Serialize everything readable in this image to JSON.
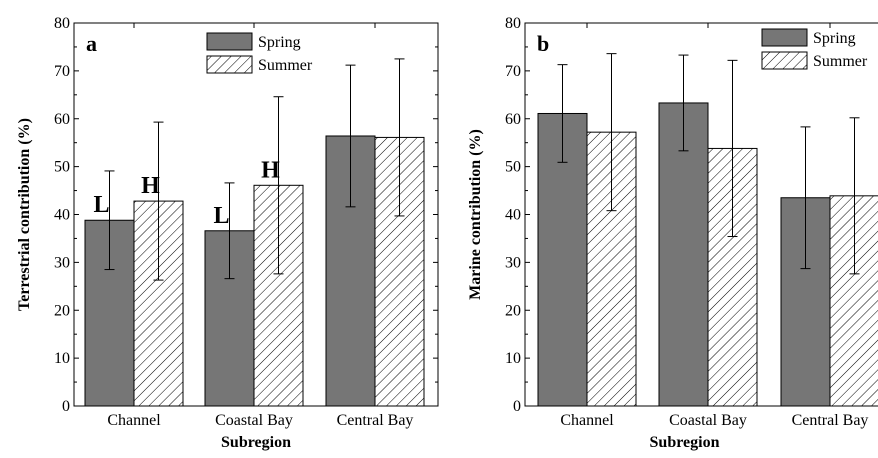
{
  "chart_data": [
    {
      "type": "bar",
      "panel_label": "a",
      "categories": [
        "Channel",
        "Coastal Bay",
        "Central Bay"
      ],
      "xlabel": "Subregion",
      "ylabel": "Terrestrial contribution (%)",
      "ylim": [
        0,
        80
      ],
      "yticks": [
        0,
        10,
        20,
        30,
        40,
        50,
        60,
        70,
        80
      ],
      "legend_position": "top-right",
      "series": [
        {
          "name": "Spring",
          "values": [
            38.8,
            36.6,
            56.4
          ],
          "errors": [
            10.3,
            10.0,
            14.8
          ],
          "labels": [
            "L",
            "L",
            ""
          ],
          "fill": "solid",
          "color": "#767676"
        },
        {
          "name": "Summer",
          "values": [
            42.8,
            46.1,
            56.1
          ],
          "errors": [
            16.5,
            18.5,
            16.4
          ],
          "labels": [
            "H",
            "H",
            ""
          ],
          "fill": "hatch",
          "color": "#ffffff"
        }
      ]
    },
    {
      "type": "bar",
      "panel_label": "b",
      "categories": [
        "Channel",
        "Coastal Bay",
        "Central Bay"
      ],
      "xlabel": "Subregion",
      "ylabel": "Marine contribution (%)",
      "ylim": [
        0,
        80
      ],
      "yticks": [
        0,
        10,
        20,
        30,
        40,
        50,
        60,
        70,
        80
      ],
      "legend_position": "top-right",
      "series": [
        {
          "name": "Spring",
          "values": [
            61.1,
            63.3,
            43.5
          ],
          "errors": [
            10.2,
            10.0,
            14.8
          ],
          "labels": [
            "",
            "",
            ""
          ],
          "fill": "solid",
          "color": "#767676"
        },
        {
          "name": "Summer",
          "values": [
            57.2,
            53.8,
            43.9
          ],
          "errors": [
            16.4,
            18.4,
            16.3
          ],
          "labels": [
            "",
            "",
            ""
          ],
          "fill": "hatch",
          "color": "#ffffff"
        }
      ]
    }
  ]
}
